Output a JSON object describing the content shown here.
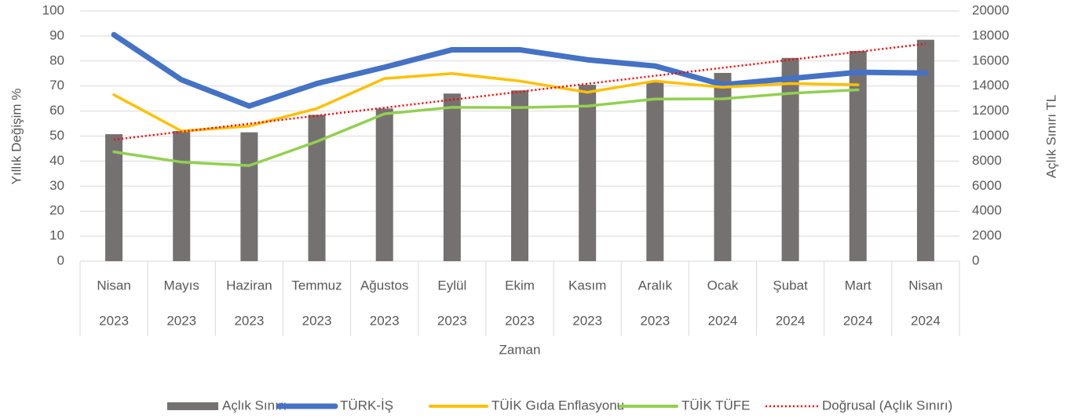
{
  "chart_data": {
    "type": "combo",
    "ylabel": "Yıllık Değişim %",
    "y2label": "Açlık Sınırı TL",
    "xlabel": "Zaman",
    "categories": [
      "Nisan",
      "Mayıs",
      "Haziran",
      "Temmuz",
      "Ağustos",
      "Eylül",
      "Ekim",
      "Kasım",
      "Aralık",
      "Ocak",
      "Şubat",
      "Mart",
      "Nisan"
    ],
    "category_years": [
      "2023",
      "2023",
      "2023",
      "2023",
      "2023",
      "2023",
      "2023",
      "2023",
      "2023",
      "2024",
      "2024",
      "2024",
      "2024"
    ],
    "series": [
      {
        "name": "Açlık Sınırı",
        "type": "bar",
        "axis": "y2",
        "color": "#767171",
        "values": [
          10150,
          10400,
          10300,
          11700,
          12200,
          13400,
          13650,
          14100,
          14350,
          15050,
          16250,
          16800,
          17700
        ]
      },
      {
        "name": "TÜRK-İŞ",
        "type": "line",
        "color": "#4472c4",
        "values": [
          90.5,
          72.5,
          62,
          71,
          77.5,
          84.5,
          84.5,
          80.5,
          78,
          70.5,
          73,
          75.5,
          75.2
        ]
      },
      {
        "name": "TÜİK Gıda Enflasyonu",
        "type": "line",
        "color": "#ffc000",
        "values": [
          66.5,
          52,
          54,
          61,
          73,
          75,
          72,
          67.5,
          72,
          69.5,
          71,
          70.5,
          null
        ]
      },
      {
        "name": "TÜİK TÜFE",
        "type": "line",
        "color": "#92d050",
        "values": [
          43.7,
          39.6,
          38.2,
          47.8,
          58.9,
          61.5,
          61.4,
          62,
          64.8,
          64.9,
          67.1,
          68.5,
          null
        ]
      }
    ],
    "trendline": {
      "name": "Doğrusal (Açlık Sınırı)",
      "color": "#ff0000",
      "series": 0,
      "kind": "linear"
    },
    "ylim": [
      0,
      100
    ],
    "yticks": [
      0,
      10,
      20,
      30,
      40,
      50,
      60,
      70,
      80,
      90,
      100
    ],
    "y2lim": [
      0,
      20000
    ],
    "y2ticks": [
      0,
      2000,
      4000,
      6000,
      8000,
      10000,
      12000,
      14000,
      16000,
      18000,
      20000
    ],
    "grid": true,
    "legend": "bottom"
  }
}
